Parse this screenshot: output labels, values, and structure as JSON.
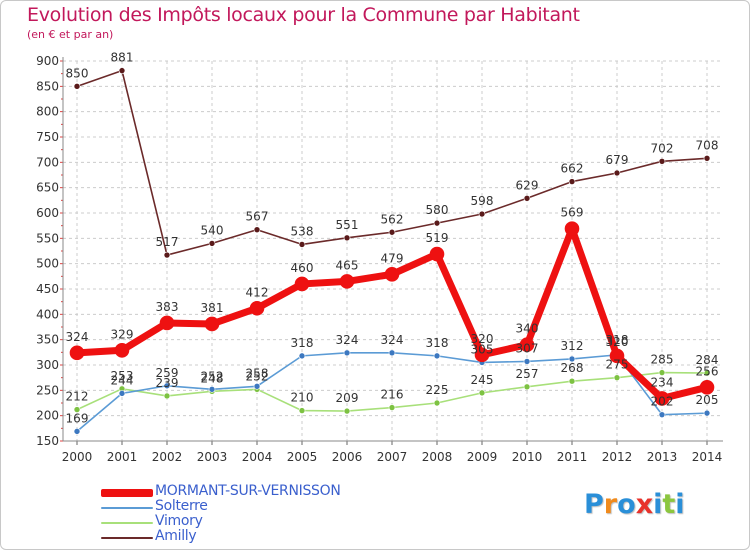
{
  "title": "Evolution des Impôts locaux pour la Commune par Habitant",
  "subtitle": "(en € et par an)",
  "brand": {
    "text": "Proxiti",
    "letter_colors": [
      "#2a8fd8",
      "#f08a1c",
      "#2a8fd8",
      "#e8322b",
      "#2a8fd8",
      "#8cc63f",
      "#2a8fd8"
    ]
  },
  "chart_data": {
    "type": "line",
    "title": "Evolution des Impôts locaux pour la Commune par Habitant",
    "ylabel": "(en € et par an)",
    "xlabel": "",
    "ylim": [
      150,
      900
    ],
    "y_ticks": [
      150,
      200,
      250,
      300,
      350,
      400,
      450,
      500,
      550,
      600,
      650,
      700,
      750,
      800,
      850,
      900
    ],
    "categories": [
      "2000",
      "2001",
      "2002",
      "2003",
      "2004",
      "2005",
      "2006",
      "2007",
      "2008",
      "2009",
      "2010",
      "2011",
      "2012",
      "2013",
      "2014"
    ],
    "grid": true,
    "legend_position": "bottom-left",
    "series": [
      {
        "name": "Amilly",
        "color": "#6b2a2a",
        "marker": "#5a1a1a",
        "values": [
          850,
          881,
          517,
          540,
          567,
          538,
          551,
          562,
          580,
          598,
          629,
          662,
          679,
          702,
          708
        ]
      },
      {
        "name": "Solterre",
        "color": "#5b9bd5",
        "marker": "#3c78c0",
        "values": [
          169,
          244,
          259,
          252,
          258,
          318,
          324,
          324,
          318,
          305,
          307,
          312,
          320,
          202,
          205
        ]
      },
      {
        "name": "Vimory",
        "color": "#a8e07a",
        "marker": "#7dc242",
        "values": [
          212,
          253,
          239,
          248,
          252,
          210,
          209,
          216,
          225,
          245,
          257,
          268,
          275,
          285,
          284
        ]
      },
      {
        "name": "MORMANT-SUR-VERNISSON",
        "color": "#ee1111",
        "marker": "#ee1111",
        "values": [
          324,
          329,
          383,
          381,
          412,
          460,
          465,
          479,
          519,
          320,
          340,
          569,
          318,
          234,
          256
        ]
      }
    ],
    "legend_order": [
      "MORMANT-SUR-VERNISSON",
      "Solterre",
      "Vimory",
      "Amilly"
    ]
  }
}
